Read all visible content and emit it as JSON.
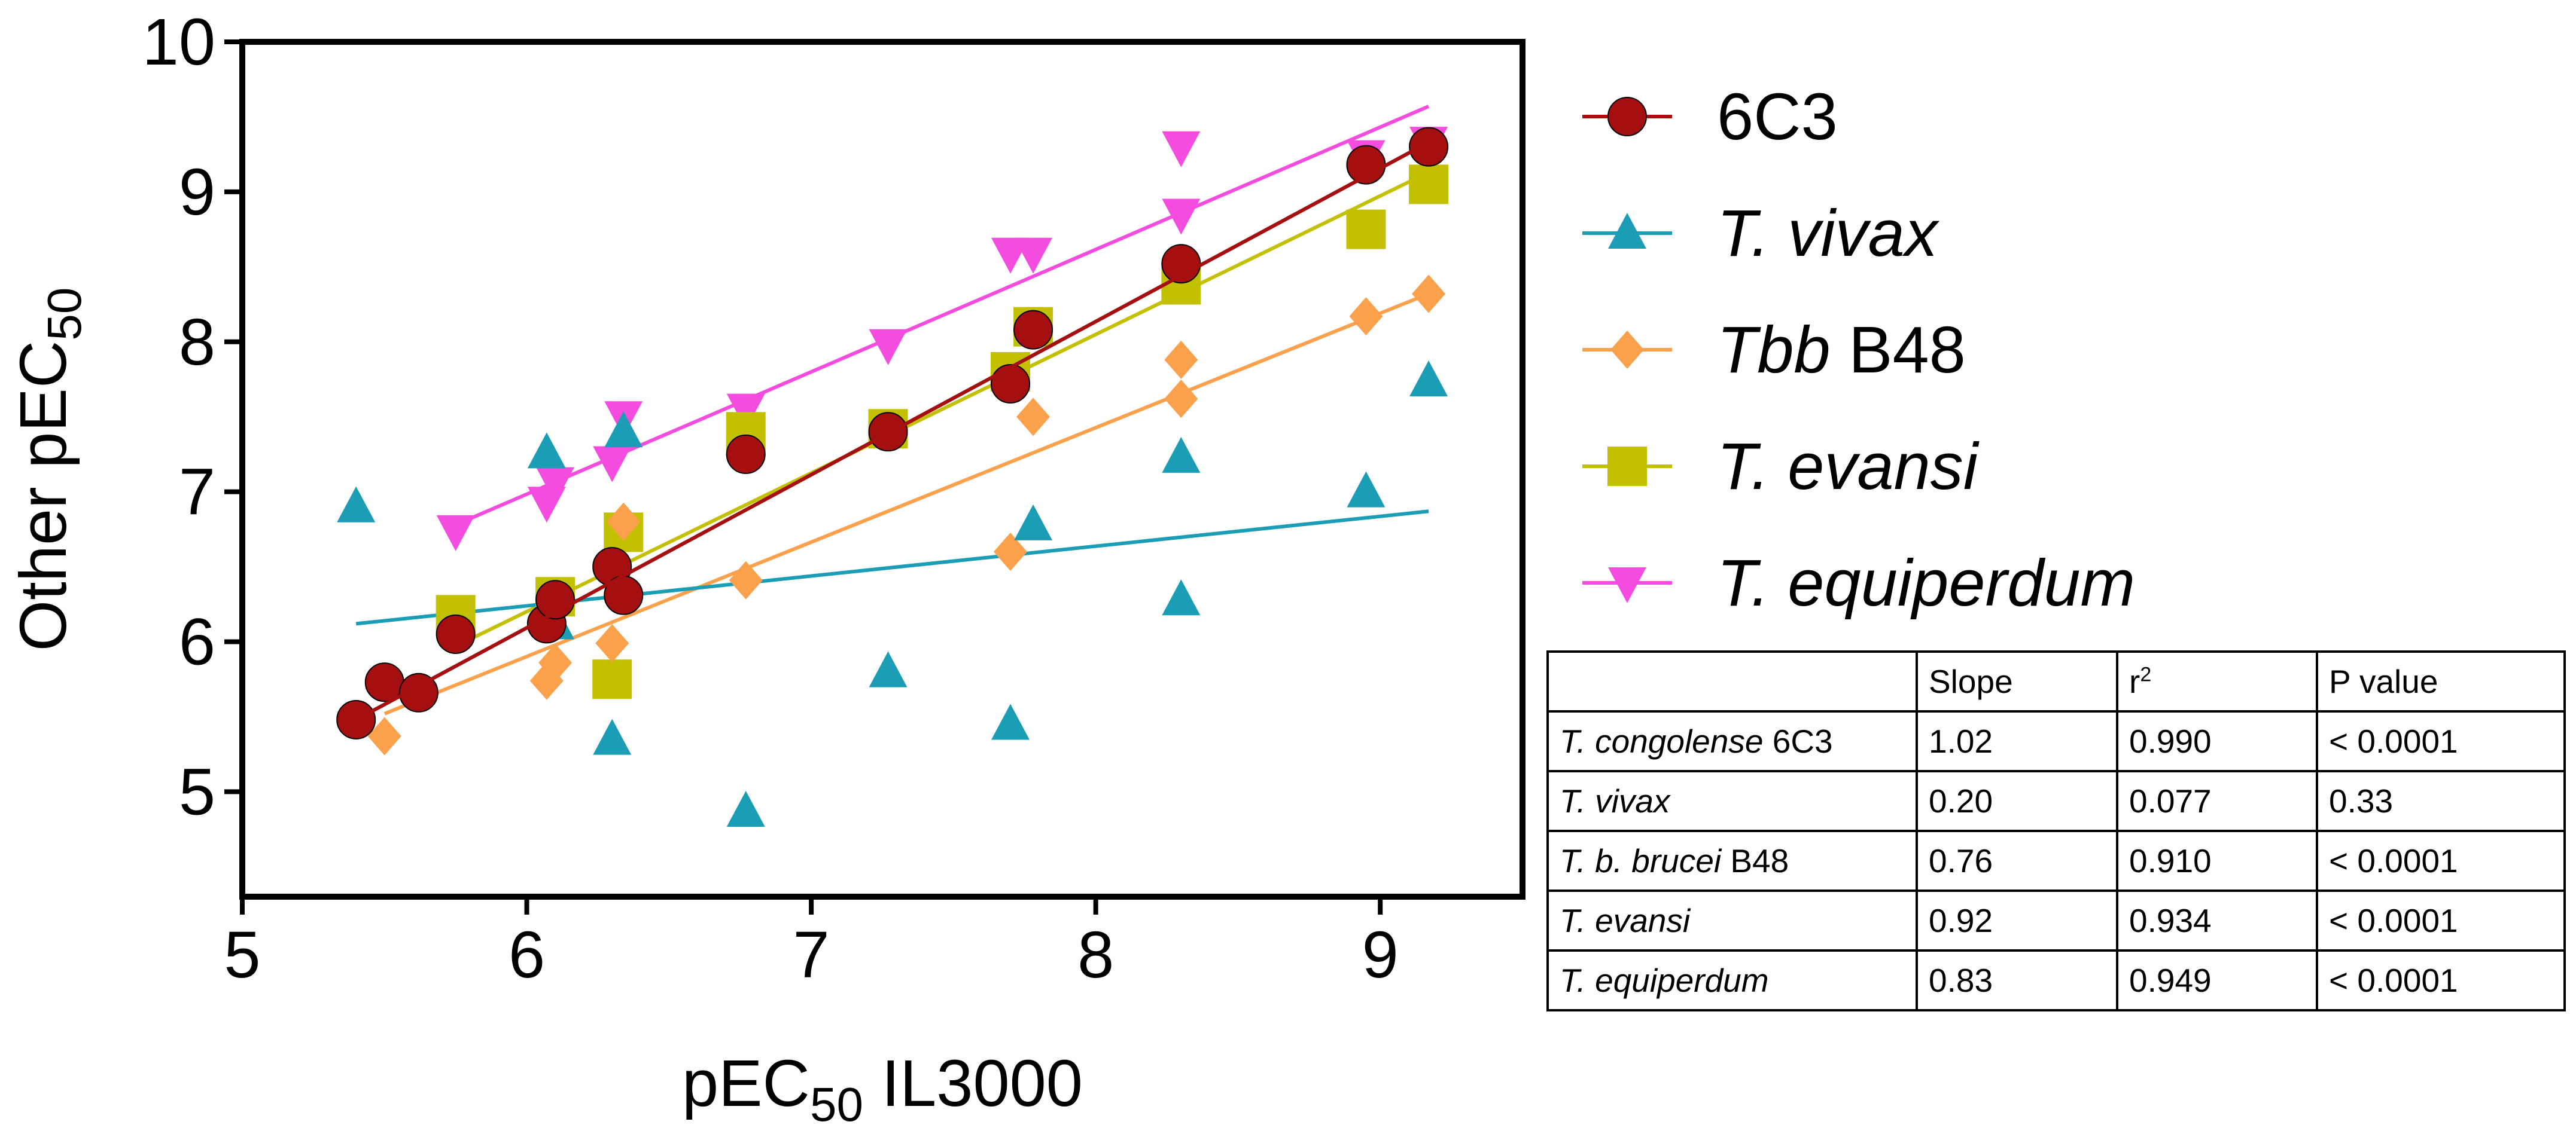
{
  "chart_data": {
    "type": "scatter",
    "title": "",
    "xlabel": {
      "prefix": "pEC",
      "sub": "50",
      "suffix": " IL3000"
    },
    "ylabel": {
      "prefix": "Other pEC",
      "sub": "50"
    },
    "xlim": [
      5,
      9.5
    ],
    "ylim": [
      4.3,
      10
    ],
    "xticks": [
      5,
      6,
      7,
      8,
      9
    ],
    "yticks": [
      5,
      6,
      7,
      8,
      9,
      10
    ],
    "grid": false,
    "legend_position": "right",
    "series": [
      {
        "name": "6C3",
        "italic_part": "",
        "roman_part": "6C3",
        "marker": "circle",
        "color": "#a50f0f",
        "x": [
          5.4,
          5.5,
          5.62,
          5.75,
          6.07,
          6.1,
          6.3,
          6.34,
          6.77,
          7.27,
          7.7,
          7.78,
          8.3,
          8.95,
          9.17
        ],
        "y": [
          5.48,
          5.73,
          5.66,
          6.05,
          6.12,
          6.28,
          6.5,
          6.31,
          7.25,
          7.4,
          7.72,
          8.08,
          8.52,
          9.18,
          9.3
        ],
        "fit": [
          [
            5.4,
            5.48
          ],
          [
            9.17,
            9.33
          ]
        ]
      },
      {
        "name": "T. vivax",
        "italic_part": "T. vivax",
        "roman_part": "",
        "marker": "triangle-up",
        "color": "#1a9db5",
        "x": [
          5.4,
          6.07,
          6.1,
          6.3,
          6.34,
          6.77,
          7.27,
          7.7,
          7.78,
          8.3,
          8.3,
          8.95,
          9.17
        ],
        "y": [
          6.9,
          7.26,
          6.12,
          5.35,
          7.4,
          4.87,
          5.8,
          5.45,
          6.78,
          7.23,
          6.28,
          7.0,
          7.74
        ],
        "fit": [
          [
            5.4,
            6.12
          ],
          [
            9.17,
            6.87
          ]
        ]
      },
      {
        "name": "Tbb B48",
        "italic_part": "Tbb",
        "roman_part": " B48",
        "marker": "diamond",
        "color": "#fba04b",
        "x": [
          5.5,
          6.07,
          6.1,
          6.3,
          6.34,
          6.77,
          7.7,
          7.78,
          8.3,
          8.3,
          8.95,
          9.17
        ],
        "y": [
          5.37,
          5.74,
          5.86,
          5.99,
          6.8,
          6.41,
          6.6,
          7.5,
          7.88,
          7.62,
          8.17,
          8.32
        ],
        "fit": [
          [
            5.5,
            5.52
          ],
          [
            9.17,
            8.32
          ]
        ]
      },
      {
        "name": "T. evansi",
        "italic_part": "T. evansi",
        "roman_part": "",
        "marker": "square",
        "color": "#c3c000",
        "x": [
          5.75,
          6.1,
          6.3,
          6.34,
          6.77,
          7.27,
          7.7,
          7.78,
          8.3,
          8.95,
          9.17
        ],
        "y": [
          6.18,
          6.3,
          5.75,
          6.73,
          7.4,
          7.42,
          7.8,
          8.1,
          8.38,
          8.75,
          9.05
        ],
        "fit": [
          [
            5.75,
            5.97
          ],
          [
            9.17,
            9.13
          ]
        ]
      },
      {
        "name": "T. equiperdum",
        "italic_part": "T. equiperdum",
        "roman_part": "",
        "marker": "triangle-down",
        "color": "#f54ce0",
        "x": [
          5.75,
          6.07,
          6.1,
          6.3,
          6.34,
          6.77,
          7.27,
          7.7,
          7.78,
          8.3,
          8.3,
          8.95,
          9.17
        ],
        "y": [
          6.74,
          6.93,
          7.06,
          7.2,
          7.5,
          7.55,
          7.98,
          8.59,
          8.59,
          9.3,
          8.85,
          9.24,
          9.33
        ],
        "fit": [
          [
            5.75,
            6.78
          ],
          [
            9.17,
            9.57
          ]
        ]
      }
    ]
  },
  "stats_table": {
    "headers": [
      "",
      "Slope",
      "r",
      "P value"
    ],
    "r_superscript": "2",
    "rows": [
      {
        "italic": "T. congolense",
        "roman": " 6C3",
        "slope": "1.02",
        "r2": "0.990",
        "p": "< 0.0001"
      },
      {
        "italic": "T. vivax",
        "roman": "",
        "slope": "0.20",
        "r2": "0.077",
        "p": "0.33"
      },
      {
        "italic": "T. b. brucei",
        "roman": " B48",
        "slope": "0.76",
        "r2": "0.910",
        "p": "< 0.0001"
      },
      {
        "italic": "T. evansi",
        "roman": "",
        "slope": "0.92",
        "r2": "0.934",
        "p": "< 0.0001"
      },
      {
        "italic": "T. equiperdum",
        "roman": "",
        "slope": "0.83",
        "r2": "0.949",
        "p": "< 0.0001"
      }
    ]
  }
}
